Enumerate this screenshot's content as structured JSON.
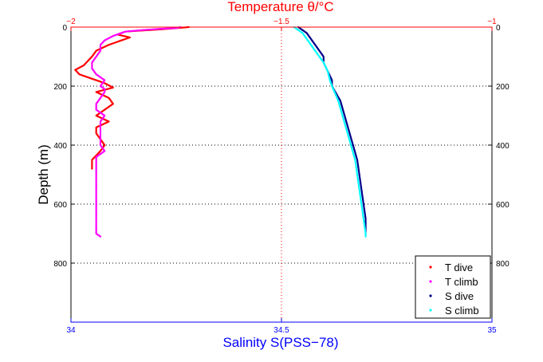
{
  "chart_data": {
    "type": "scatter",
    "top_axis": {
      "label": "Temperature θ/°C",
      "range": [
        -2,
        -1
      ],
      "ticks": [
        -2,
        -1.5,
        -1
      ],
      "tick_labels": [
        "−2",
        "−1.5",
        "−1"
      ],
      "color": "#ff0000"
    },
    "bottom_axis": {
      "label": "Salinity S(PSS−78)",
      "range": [
        34,
        35
      ],
      "ticks": [
        34,
        34.5,
        35
      ],
      "tick_labels": [
        "34",
        "34.5",
        "35"
      ],
      "color": "#0000ff"
    },
    "y_axis": {
      "label": "Depth (m)",
      "range": [
        0,
        1000
      ],
      "reversed": true,
      "ticks": [
        0,
        200,
        400,
        600,
        800
      ],
      "tick_labels": [
        "0",
        "200",
        "400",
        "600",
        "800"
      ],
      "grid": true
    },
    "legend_position": "bottom-right",
    "series": [
      {
        "name": "T dive",
        "axis": "top",
        "color": "#ff0000",
        "depth": [
          0,
          8,
          15,
          25,
          35,
          45,
          60,
          80,
          100,
          115,
          130,
          145,
          160,
          175,
          190,
          205,
          220,
          240,
          260,
          280,
          300,
          320,
          340,
          360,
          380,
          400,
          420,
          450,
          480
        ],
        "values": [
          -1.72,
          -1.79,
          -1.87,
          -1.89,
          -1.86,
          -1.88,
          -1.91,
          -1.94,
          -1.95,
          -1.96,
          -1.97,
          -1.99,
          -1.98,
          -1.95,
          -1.92,
          -1.9,
          -1.94,
          -1.91,
          -1.9,
          -1.92,
          -1.94,
          -1.91,
          -1.94,
          -1.94,
          -1.93,
          -1.92,
          -1.93,
          -1.95,
          -1.95
        ]
      },
      {
        "name": "T climb",
        "axis": "top",
        "color": "#ff00ff",
        "depth": [
          0,
          3,
          6,
          10,
          15,
          20,
          30,
          45,
          60,
          80,
          100,
          120,
          140,
          160,
          180,
          200,
          210,
          220,
          240,
          260,
          280,
          300,
          320,
          340,
          360,
          380,
          400,
          420,
          440,
          460,
          480,
          500,
          550,
          600,
          650,
          700,
          710
        ],
        "values": [
          -1.74,
          -1.75,
          -1.79,
          -1.83,
          -1.87,
          -1.88,
          -1.9,
          -1.92,
          -1.93,
          -1.93,
          -1.94,
          -1.95,
          -1.95,
          -1.94,
          -1.92,
          -1.93,
          -1.92,
          -1.92,
          -1.93,
          -1.94,
          -1.94,
          -1.92,
          -1.93,
          -1.93,
          -1.93,
          -1.93,
          -1.93,
          -1.92,
          -1.94,
          -1.94,
          -1.94,
          -1.94,
          -1.94,
          -1.94,
          -1.94,
          -1.94,
          -1.93
        ]
      },
      {
        "name": "S dive",
        "axis": "bottom",
        "color": "#00008b",
        "depth": [
          0,
          10,
          20,
          40,
          60,
          80,
          100,
          120,
          150,
          180,
          200,
          250,
          300,
          350,
          400,
          450,
          500,
          550,
          600,
          650,
          700
        ],
        "values": [
          34.54,
          34.55,
          34.56,
          34.57,
          34.58,
          34.59,
          34.6,
          34.6,
          34.61,
          34.62,
          34.62,
          34.64,
          34.65,
          34.66,
          34.67,
          34.68,
          34.685,
          34.69,
          34.695,
          34.7,
          34.7
        ]
      },
      {
        "name": "S climb",
        "axis": "bottom",
        "color": "#00ffff",
        "depth": [
          0,
          10,
          20,
          40,
          60,
          80,
          100,
          120,
          150,
          180,
          200,
          250,
          300,
          350,
          400,
          450,
          500,
          550,
          600,
          650,
          700,
          710
        ],
        "values": [
          34.53,
          34.54,
          34.55,
          34.56,
          34.57,
          34.58,
          34.59,
          34.6,
          34.61,
          34.615,
          34.62,
          34.635,
          34.645,
          34.655,
          34.665,
          34.675,
          34.68,
          34.685,
          34.69,
          34.695,
          34.7,
          34.7
        ]
      }
    ]
  }
}
